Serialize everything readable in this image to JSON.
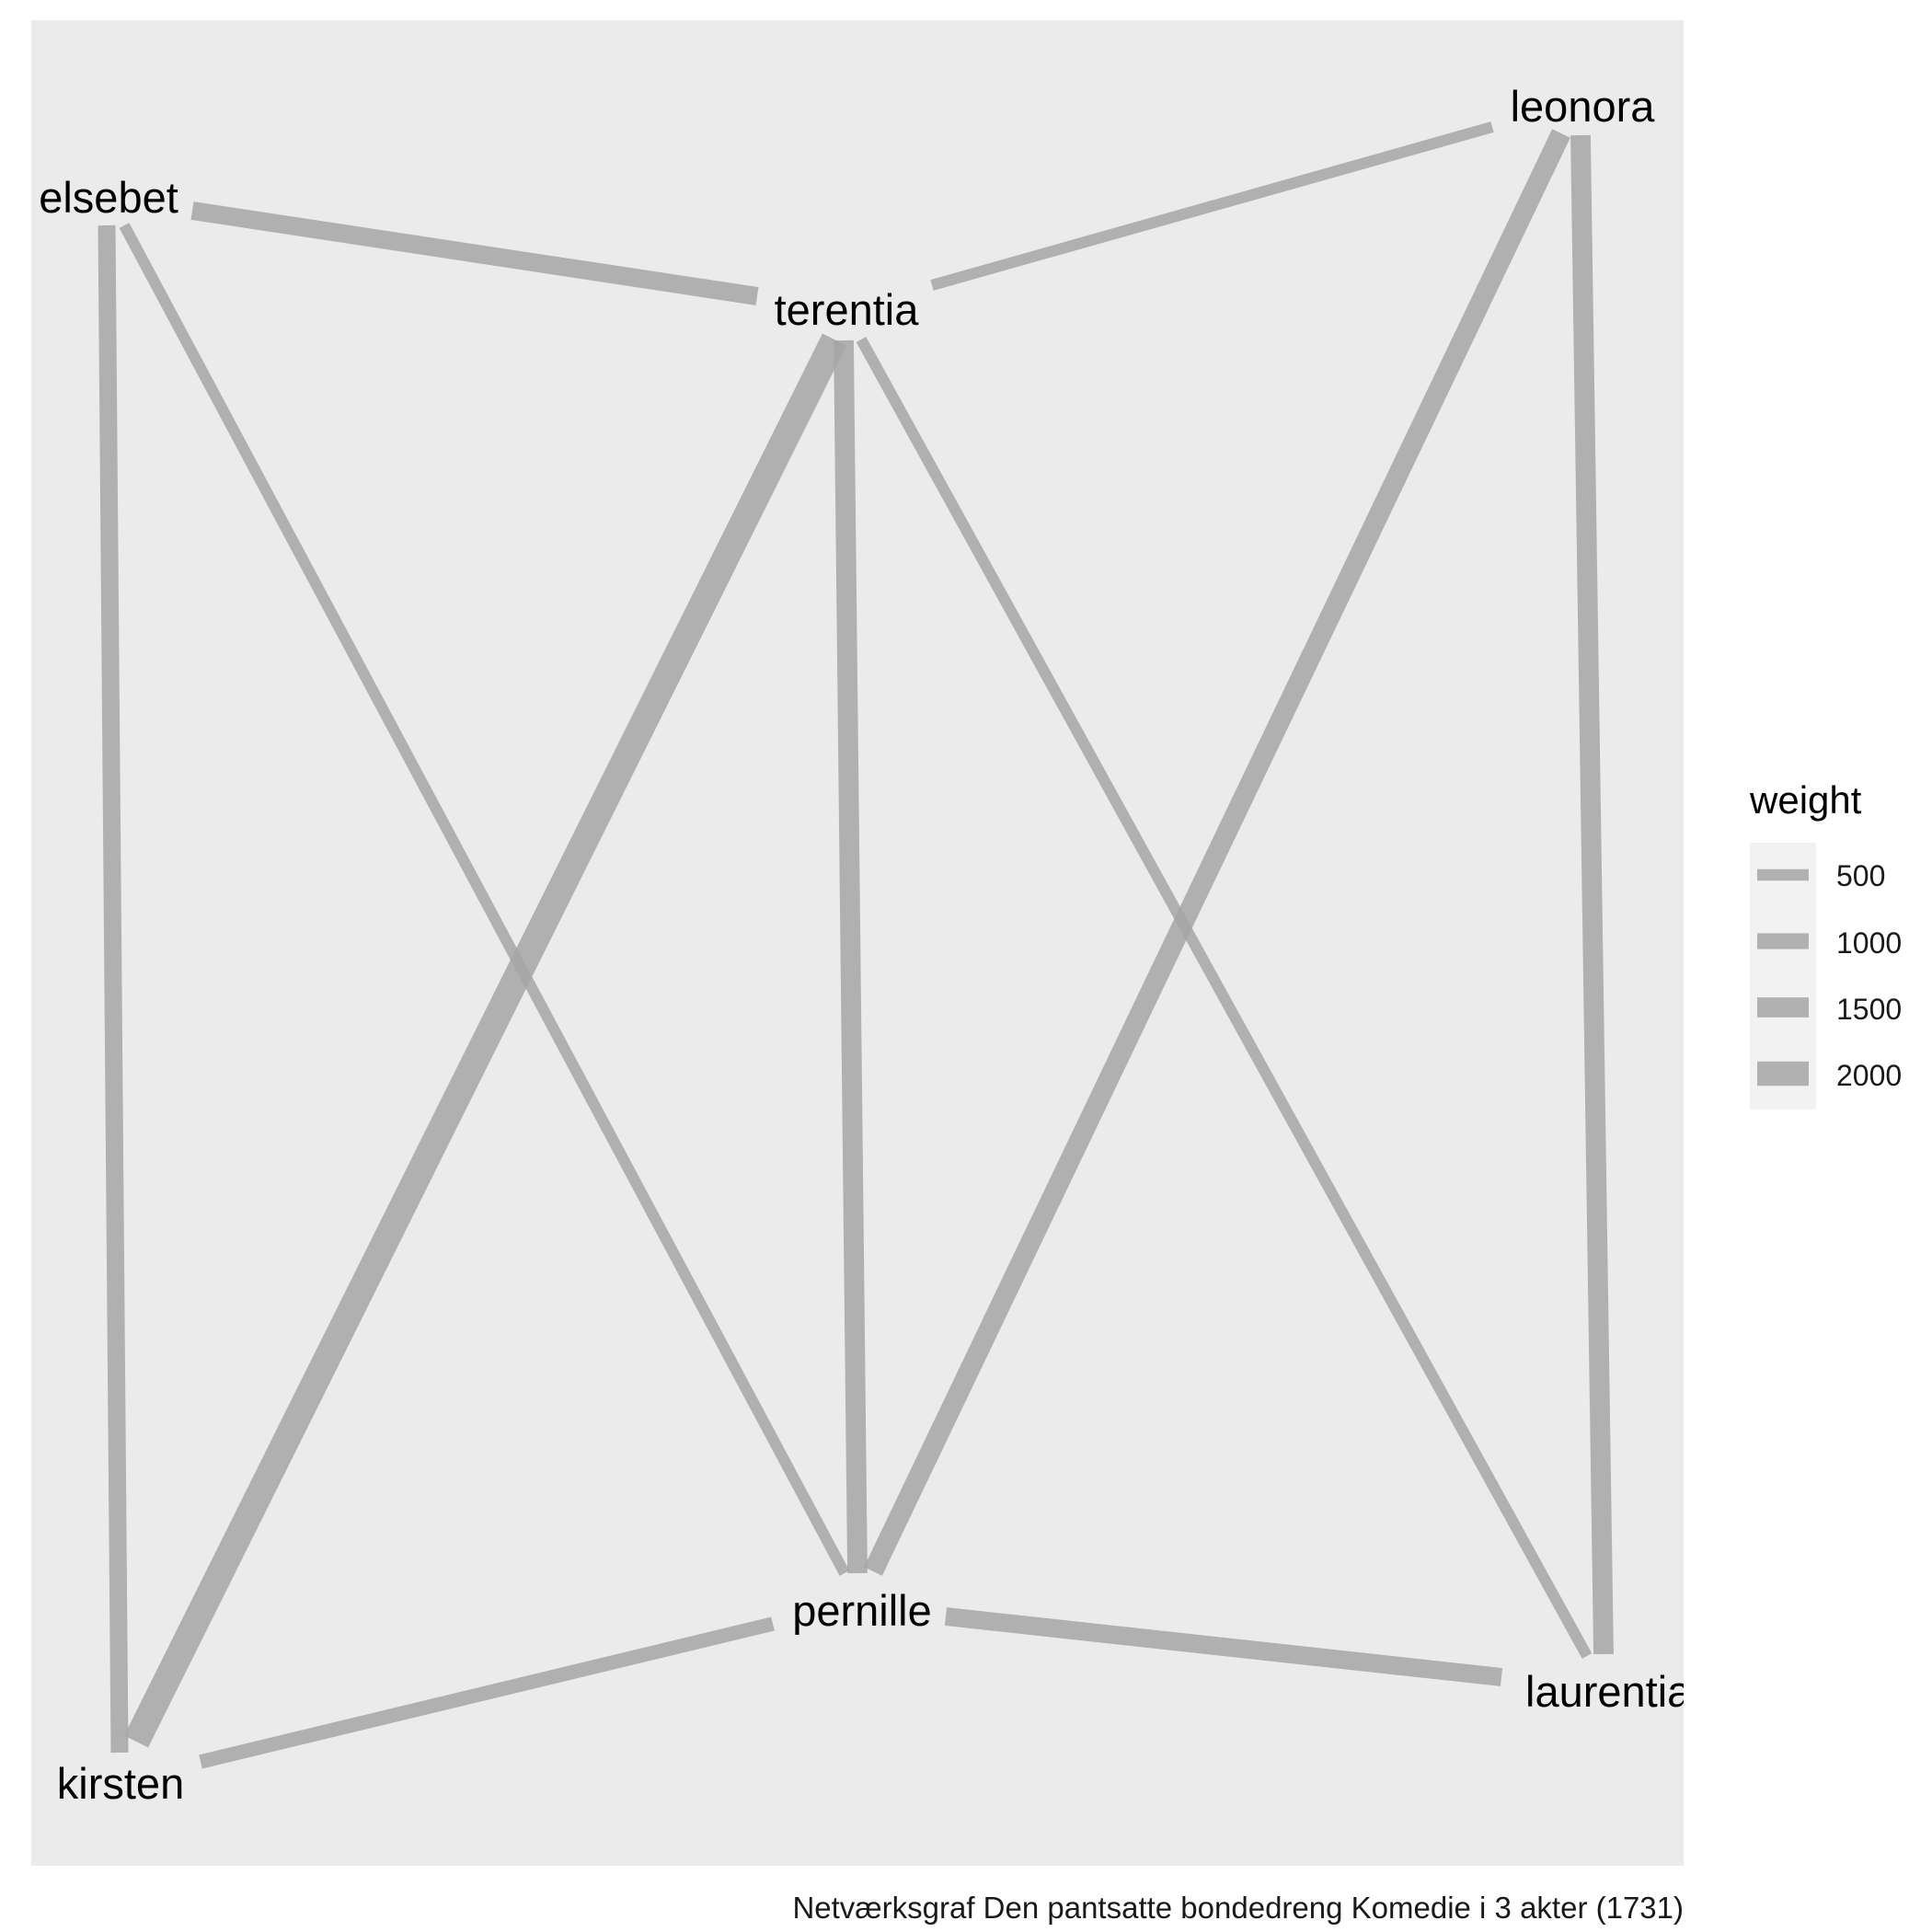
{
  "chart_data": {
    "type": "network",
    "nodes": [
      {
        "id": "elsebet",
        "label": "elsebet"
      },
      {
        "id": "terentia",
        "label": "terentia"
      },
      {
        "id": "leonora",
        "label": "leonora"
      },
      {
        "id": "pernille",
        "label": "pernille"
      },
      {
        "id": "laurentia",
        "label": "laurentia"
      },
      {
        "id": "kirsten",
        "label": "kirsten"
      }
    ],
    "edges": [
      {
        "source": "elsebet",
        "target": "terentia",
        "weight": 1300
      },
      {
        "source": "elsebet",
        "target": "kirsten",
        "weight": 1200
      },
      {
        "source": "elsebet",
        "target": "pernille",
        "weight": 450
      },
      {
        "source": "terentia",
        "target": "leonora",
        "weight": 450
      },
      {
        "source": "terentia",
        "target": "kirsten",
        "weight": 2300
      },
      {
        "source": "terentia",
        "target": "pernille",
        "weight": 1500
      },
      {
        "source": "terentia",
        "target": "laurentia",
        "weight": 450
      },
      {
        "source": "leonora",
        "target": "pernille",
        "weight": 1500
      },
      {
        "source": "leonora",
        "target": "laurentia",
        "weight": 1500
      },
      {
        "source": "pernille",
        "target": "kirsten",
        "weight": 800
      },
      {
        "source": "pernille",
        "target": "laurentia",
        "weight": 1300
      }
    ],
    "legend": {
      "title": "weight",
      "position": "right",
      "entries": [
        {
          "label": "500",
          "value": 500
        },
        {
          "label": "1000",
          "value": 1000
        },
        {
          "label": "1500",
          "value": 1500
        },
        {
          "label": "2000",
          "value": 2000
        }
      ]
    },
    "caption": "Netværksgraf Den pantsatte bondedreng Komedie i 3 akter (1731)",
    "edge_color": "#a6a6a6",
    "panel_background": "#ebebeb",
    "label_color": "#000000"
  }
}
